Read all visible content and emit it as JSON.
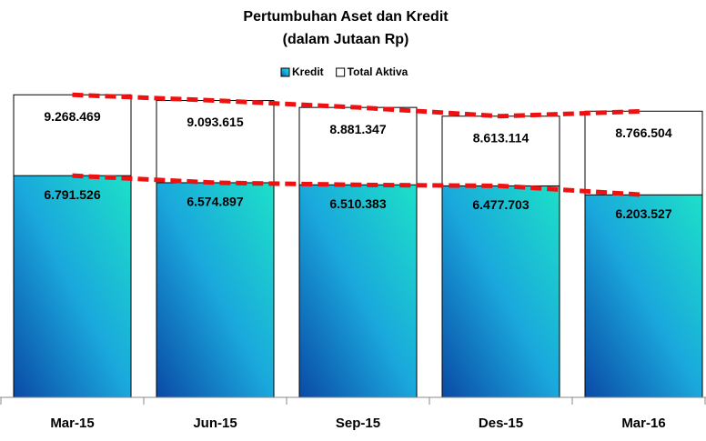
{
  "chart_data": {
    "type": "bar",
    "title": "Pertumbuhan Aset dan Kredit",
    "subtitle": "(dalam Jutaan Rp)",
    "categories": [
      "Mar-15",
      "Jun-15",
      "Sep-15",
      "Des-15",
      "Mar-16"
    ],
    "series": [
      {
        "name": "Kredit",
        "color": "#1a9fd8",
        "values": [
          6791526,
          6574897,
          6510383,
          6477703,
          6203527
        ],
        "value_labels": [
          "6.791.526",
          "6.574.897",
          "6.510.383",
          "6.477.703",
          "6.203.527"
        ]
      },
      {
        "name": "Total Aktiva",
        "color": "#ffffff",
        "values": [
          9268469,
          9093615,
          8881347,
          8613114,
          8766504
        ],
        "value_labels": [
          "9.268.469",
          "9.093.615",
          "8.881.347",
          "8.613.114",
          "8.766.504"
        ]
      }
    ],
    "ylim": [
      0,
      10000000
    ],
    "legend": "top"
  }
}
